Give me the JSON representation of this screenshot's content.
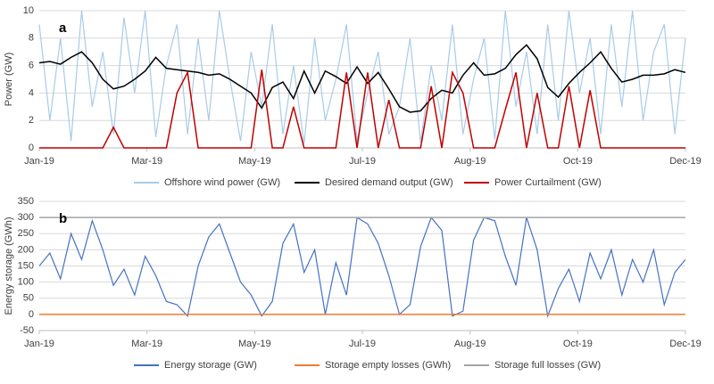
{
  "chart_data": [
    {
      "type": "line",
      "panel_label": "a",
      "y_label": "Power (GW)",
      "x": [
        0,
        6,
        12,
        18,
        24,
        30,
        36,
        42,
        48,
        54,
        60,
        66,
        72,
        78,
        84,
        90,
        96,
        102,
        108,
        114,
        120,
        126,
        132,
        138,
        144,
        150,
        156,
        162,
        168,
        174,
        180,
        186,
        192,
        198,
        204,
        210,
        216,
        222,
        228,
        234,
        240,
        246,
        252,
        258,
        264,
        270,
        276,
        282,
        288,
        294,
        300,
        306,
        312,
        318,
        324,
        330,
        336,
        342,
        348,
        354,
        360,
        366
      ],
      "xlim": [
        0,
        366
      ],
      "xticks": [
        {
          "value": 0,
          "label": "Jan-19"
        },
        {
          "value": 61,
          "label": "Mar-19"
        },
        {
          "value": 122,
          "label": "May-19"
        },
        {
          "value": 183,
          "label": "Jul-19"
        },
        {
          "value": 244,
          "label": "Aug-19"
        },
        {
          "value": 305,
          "label": "Oct-19"
        },
        {
          "value": 366,
          "label": "Dec-19"
        }
      ],
      "ylim": [
        0,
        10
      ],
      "yticks": [
        0,
        2,
        4,
        6,
        8,
        10
      ],
      "grid": true,
      "series": [
        {
          "name": "Offshore wind power (GW)",
          "color": "#a9cbe8",
          "values": [
            9,
            2,
            8,
            0.5,
            10,
            3,
            7,
            1,
            9.5,
            4,
            10,
            0.8,
            6,
            9,
            1,
            8,
            2,
            10,
            5,
            0.5,
            7,
            3,
            9,
            1,
            6,
            0.3,
            8,
            2,
            5,
            9,
            0.5,
            4,
            7,
            1,
            3,
            8,
            0.4,
            6,
            2,
            9,
            1,
            5,
            8,
            0.6,
            10,
            3,
            7,
            1,
            9,
            2,
            10,
            4,
            8,
            1,
            9,
            3,
            10,
            2,
            7,
            9,
            1,
            8
          ]
        },
        {
          "name": "Desired demand output (GW)",
          "color": "#000000",
          "values": [
            6.2,
            6.3,
            6.1,
            6.6,
            7.0,
            6.2,
            5.0,
            4.3,
            4.5,
            5.0,
            5.6,
            6.6,
            5.8,
            5.7,
            5.6,
            5.5,
            5.3,
            5.4,
            5.0,
            4.5,
            4.0,
            2.9,
            4.4,
            4.8,
            3.6,
            5.6,
            4.0,
            5.6,
            5.2,
            4.7,
            5.9,
            4.7,
            5.5,
            4.3,
            3.0,
            2.6,
            2.7,
            3.6,
            4.2,
            4.0,
            5.3,
            6.2,
            5.3,
            5.4,
            5.8,
            6.8,
            7.5,
            6.5,
            4.4,
            3.7,
            4.7,
            5.5,
            6.2,
            7.0,
            5.8,
            4.8,
            5.0,
            5.3,
            5.3,
            5.4,
            5.7,
            5.5
          ]
        },
        {
          "name": "Power Curtailment (GW)",
          "color": "#c00000",
          "values": [
            0,
            0,
            0,
            0,
            0,
            0,
            0,
            1.5,
            0,
            0,
            0,
            0,
            0,
            4,
            5.5,
            0,
            0,
            0,
            0,
            0,
            0,
            5.7,
            0,
            0,
            3,
            0,
            0,
            0,
            0,
            5.5,
            0,
            5.5,
            0,
            3.5,
            0,
            0,
            0,
            4.5,
            0,
            5.5,
            4,
            0,
            0,
            0,
            2.8,
            5.5,
            0,
            4,
            0,
            0,
            4.5,
            0,
            4.2,
            0,
            0,
            0,
            0,
            0,
            0,
            0,
            0,
            0
          ]
        }
      ]
    },
    {
      "type": "line",
      "panel_label": "b",
      "y_label": "Energy storage (GWh)",
      "x": [
        0,
        6,
        12,
        18,
        24,
        30,
        36,
        42,
        48,
        54,
        60,
        66,
        72,
        78,
        84,
        90,
        96,
        102,
        108,
        114,
        120,
        126,
        132,
        138,
        144,
        150,
        156,
        162,
        168,
        174,
        180,
        186,
        192,
        198,
        204,
        210,
        216,
        222,
        228,
        234,
        240,
        246,
        252,
        258,
        264,
        270,
        276,
        282,
        288,
        294,
        300,
        306,
        312,
        318,
        324,
        330,
        336,
        342,
        348,
        354,
        360,
        366
      ],
      "xlim": [
        0,
        366
      ],
      "xticks": [
        {
          "value": 0,
          "label": "Jan-19"
        },
        {
          "value": 61,
          "label": "Mar-19"
        },
        {
          "value": 122,
          "label": "May-19"
        },
        {
          "value": 183,
          "label": "Jul-19"
        },
        {
          "value": 244,
          "label": "Aug-19"
        },
        {
          "value": 305,
          "label": "Oct-19"
        },
        {
          "value": 366,
          "label": "Dec-19"
        }
      ],
      "ylim": [
        -50,
        350
      ],
      "yticks": [
        -50,
        0,
        50,
        100,
        150,
        200,
        250,
        300,
        350
      ],
      "grid": true,
      "series": [
        {
          "name": "Energy storage (GW)",
          "color": "#4472c4",
          "values": [
            150,
            190,
            110,
            250,
            170,
            290,
            200,
            90,
            140,
            60,
            180,
            120,
            40,
            30,
            -5,
            150,
            240,
            280,
            190,
            100,
            60,
            -5,
            40,
            220,
            280,
            130,
            200,
            0,
            160,
            60,
            300,
            280,
            220,
            120,
            0,
            30,
            210,
            300,
            260,
            -5,
            10,
            230,
            300,
            290,
            180,
            90,
            300,
            200,
            -5,
            80,
            140,
            40,
            190,
            110,
            200,
            60,
            170,
            100,
            200,
            30,
            130,
            170
          ]
        },
        {
          "name": "Storage empty losses (GWh)",
          "color": "#ed7d31",
          "values": [
            0,
            0,
            0,
            0,
            0,
            0,
            0,
            0,
            0,
            0,
            0,
            0,
            0,
            0,
            0,
            0,
            0,
            0,
            0,
            0,
            0,
            0,
            0,
            0,
            0,
            0,
            0,
            0,
            0,
            0,
            0,
            0,
            0,
            0,
            0,
            0,
            0,
            0,
            0,
            0,
            0,
            0,
            0,
            0,
            0,
            0,
            0,
            0,
            0,
            0,
            0,
            0,
            0,
            0,
            0,
            0,
            0,
            0,
            0,
            0,
            0,
            0
          ]
        },
        {
          "name": "Storage full losses (GW)",
          "color": "#a5a5a5",
          "values": [
            300,
            300,
            300,
            300,
            300,
            300,
            300,
            300,
            300,
            300,
            300,
            300,
            300,
            300,
            300,
            300,
            300,
            300,
            300,
            300,
            300,
            300,
            300,
            300,
            300,
            300,
            300,
            300,
            300,
            300,
            300,
            300,
            300,
            300,
            300,
            300,
            300,
            300,
            300,
            300,
            300,
            300,
            300,
            300,
            300,
            300,
            300,
            300,
            300,
            300,
            300,
            300,
            300,
            300,
            300,
            300,
            300,
            300,
            300,
            300,
            300,
            300
          ]
        }
      ]
    }
  ]
}
